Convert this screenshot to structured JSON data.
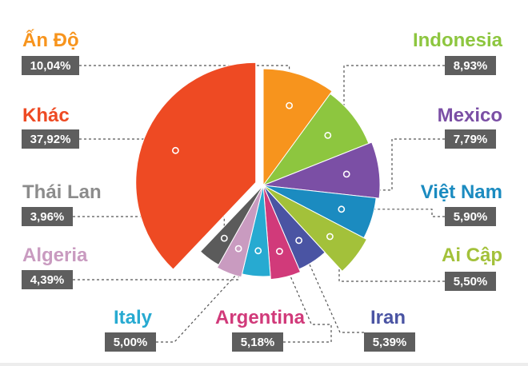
{
  "chart_data": {
    "type": "pie",
    "start_angle_deg": 90,
    "direction": "clockwise",
    "slices": [
      {
        "label": "Ấn Độ",
        "value_label": "10,04%",
        "value": 10.04,
        "color": "#f7941d",
        "side": "left"
      },
      {
        "label": "Indonesia",
        "value_label": "8,93%",
        "value": 8.93,
        "color": "#8dc63f",
        "side": "right"
      },
      {
        "label": "Mexico",
        "value_label": "7,79%",
        "value": 7.79,
        "color": "#7b4fa5",
        "side": "right"
      },
      {
        "label": "Việt Nam",
        "value_label": "5,90%",
        "value": 5.9,
        "color": "#1b8bc0",
        "side": "right"
      },
      {
        "label": "Ai Cập",
        "value_label": "5,50%",
        "value": 5.5,
        "color": "#a3c13a",
        "side": "right"
      },
      {
        "label": "Iran",
        "value_label": "5,39%",
        "value": 5.39,
        "color": "#4a54a3",
        "side": "bottom"
      },
      {
        "label": "Argentina",
        "value_label": "5,18%",
        "value": 5.18,
        "color": "#d13a7a",
        "side": "bottom"
      },
      {
        "label": "Italy",
        "value_label": "5,00%",
        "value": 5.0,
        "color": "#27aad1",
        "side": "bottom"
      },
      {
        "label": "Algeria",
        "value_label": "4,39%",
        "value": 4.39,
        "color": "#c99bc0",
        "side": "left"
      },
      {
        "label": "Thái Lan",
        "value_label": "3,96%",
        "value": 3.96,
        "color": "#5b5b5b",
        "side": "left"
      },
      {
        "label": "Khác",
        "value_label": "37,92%",
        "value": 37.92,
        "color": "#ee4a23",
        "side": "left",
        "exploded": true
      }
    ],
    "label_text_colors": {
      "Ấn Độ": "#f7941d",
      "Indonesia": "#8dc63f",
      "Mexico": "#7b4fa5",
      "Việt Nam": "#1b8bc0",
      "Ai Cập": "#a3c13a",
      "Iran": "#4a54a3",
      "Argentina": "#d13a7a",
      "Italy": "#27aad1",
      "Algeria": "#c99bc0",
      "Thái Lan": "#8c8c8c",
      "Khác": "#ee4a23"
    },
    "value_box_color": "#5e5e5e",
    "leader_line_color": "#555555"
  }
}
